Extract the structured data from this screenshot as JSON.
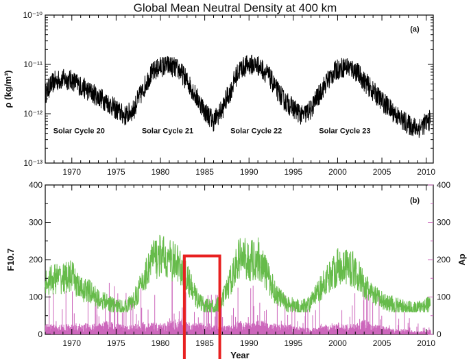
{
  "title": "Global Mean Neutral Density at 400 km",
  "chart_data": [
    {
      "id": "a",
      "type": "line",
      "panel_label": "(a)",
      "ylabel": "ρ (kg/m³)",
      "yscale": "log",
      "xlim": [
        1967,
        2010.8
      ],
      "ylim": [
        1e-13,
        1e-10
      ],
      "x_ticks": [
        1970,
        1975,
        1980,
        1985,
        1990,
        1995,
        2000,
        2005,
        2010
      ],
      "y_ticks": [
        {
          "value": 1e-13,
          "label": "10⁻¹³"
        },
        {
          "value": 1e-12,
          "label": "10⁻¹²"
        },
        {
          "value": 1e-11,
          "label": "10⁻¹¹"
        },
        {
          "value": 1e-10,
          "label": "10⁻¹⁰"
        }
      ],
      "grid": false,
      "series": [
        {
          "color": "#000000",
          "x": [
            1967.0,
            1968.0,
            1969.0,
            1970.0,
            1971.0,
            1972.0,
            1973.0,
            1974.0,
            1975.0,
            1976.0,
            1977.0,
            1978.0,
            1979.0,
            1980.0,
            1981.0,
            1982.0,
            1983.0,
            1984.0,
            1985.0,
            1986.0,
            1987.0,
            1988.0,
            1989.0,
            1990.0,
            1991.0,
            1992.0,
            1993.0,
            1994.0,
            1995.0,
            1996.0,
            1997.0,
            1998.0,
            1999.0,
            2000.0,
            2001.0,
            2002.0,
            2003.0,
            2004.0,
            2005.0,
            2006.0,
            2007.0,
            2008.0,
            2009.0,
            2010.0,
            2010.5
          ],
          "y": [
            2.5e-12,
            4.5e-12,
            5e-12,
            4.8e-12,
            3.6e-12,
            2.8e-12,
            2.2e-12,
            1.7e-12,
            1.2e-12,
            9e-13,
            1.2e-12,
            2.8e-12,
            6.5e-12,
            9e-12,
            9.5e-12,
            8e-12,
            4.5e-12,
            2.2e-12,
            1.1e-12,
            7e-13,
            1.2e-12,
            3e-12,
            8e-12,
            1e-11,
            9.5e-12,
            6.5e-12,
            3.2e-12,
            1.8e-12,
            1.3e-12,
            9e-13,
            1.2e-12,
            2.5e-12,
            5e-12,
            8e-12,
            9e-12,
            7.5e-12,
            4.5e-12,
            2.8e-12,
            1.8e-12,
            1.2e-12,
            8e-13,
            6e-13,
            5e-13,
            6.5e-13,
            7.5e-13
          ]
        }
      ],
      "annotations": [
        {
          "text": "Solar Cycle 20",
          "x": 1967.9,
          "y": 4e-13
        },
        {
          "text": "Solar Cycle 21",
          "x": 1977.9,
          "y": 4e-13
        },
        {
          "text": "Solar Cycle 22",
          "x": 1987.9,
          "y": 4e-13
        },
        {
          "text": "Solar Cycle 23",
          "x": 1997.9,
          "y": 4e-13
        }
      ]
    },
    {
      "id": "b",
      "type": "line",
      "panel_label": "(b)",
      "xlabel": "Year",
      "ylabel": "F10.7",
      "ylabel_right": "Ap",
      "xlim": [
        1967,
        2010.8
      ],
      "ylim": [
        0,
        400
      ],
      "ylim_right": [
        0,
        400
      ],
      "x_ticks": [
        1970,
        1975,
        1980,
        1985,
        1990,
        1995,
        2000,
        2005,
        2010
      ],
      "y_ticks": [
        0,
        100,
        200,
        300,
        400
      ],
      "y_ticks_right": [
        0,
        100,
        200,
        300,
        400
      ],
      "grid": false,
      "series": [
        {
          "name": "F10.7",
          "color": "#66bb4a",
          "x": [
            1967.0,
            1968.0,
            1969.0,
            1970.0,
            1971.0,
            1972.0,
            1973.0,
            1974.0,
            1975.0,
            1976.0,
            1977.0,
            1978.0,
            1979.0,
            1980.0,
            1981.0,
            1982.0,
            1983.0,
            1984.0,
            1985.0,
            1986.0,
            1987.0,
            1988.0,
            1989.0,
            1990.0,
            1991.0,
            1992.0,
            1993.0,
            1994.0,
            1995.0,
            1996.0,
            1997.0,
            1998.0,
            1999.0,
            2000.0,
            2001.0,
            2002.0,
            2003.0,
            2004.0,
            2005.0,
            2006.0,
            2007.0,
            2008.0,
            2009.0,
            2010.0,
            2010.5
          ],
          "y": [
            140,
            150,
            150,
            155,
            120,
            115,
            95,
            85,
            75,
            72,
            90,
            140,
            200,
            210,
            200,
            190,
            150,
            100,
            75,
            72,
            90,
            150,
            210,
            195,
            205,
            160,
            110,
            85,
            78,
            72,
            85,
            120,
            155,
            180,
            185,
            170,
            130,
            105,
            90,
            82,
            75,
            70,
            70,
            78,
            82
          ]
        },
        {
          "name": "Ap",
          "color": "#cc66bb",
          "x": [
            1967.0,
            1968.0,
            1969.0,
            1970.0,
            1971.0,
            1972.0,
            1973.0,
            1974.0,
            1975.0,
            1976.0,
            1977.0,
            1978.0,
            1979.0,
            1980.0,
            1981.0,
            1982.0,
            1983.0,
            1984.0,
            1985.0,
            1986.0,
            1987.0,
            1988.0,
            1989.0,
            1990.0,
            1991.0,
            1992.0,
            1993.0,
            1994.0,
            1995.0,
            1996.0,
            1997.0,
            1998.0,
            1999.0,
            2000.0,
            2001.0,
            2002.0,
            2003.0,
            2004.0,
            2005.0,
            2006.0,
            2007.0,
            2008.0,
            2009.0,
            2010.0,
            2010.5
          ],
          "y": [
            15,
            14,
            14,
            16,
            15,
            16,
            16,
            20,
            17,
            14,
            13,
            18,
            17,
            16,
            19,
            22,
            18,
            17,
            16,
            15,
            12,
            14,
            20,
            18,
            22,
            17,
            15,
            16,
            14,
            10,
            9,
            13,
            15,
            17,
            14,
            15,
            22,
            15,
            13,
            9,
            8,
            7,
            4,
            6,
            7
          ]
        }
      ],
      "highlight": {
        "x_range": [
          1982.7,
          1986.7
        ],
        "y_range": [
          -75,
          210
        ],
        "color": "#e82020"
      }
    }
  ]
}
